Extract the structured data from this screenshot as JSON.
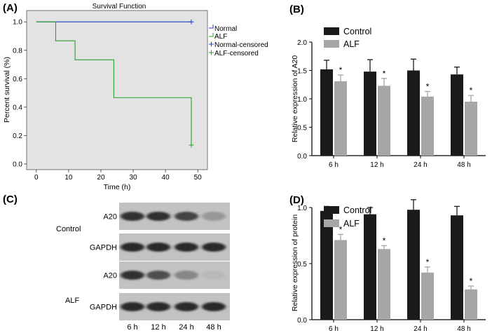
{
  "panels": {
    "a": "(A)",
    "b": "(B)",
    "c": "(C)",
    "d": "(D)"
  },
  "colors": {
    "normal": "#1f3fbf",
    "alf": "#2aa02a",
    "control": "#1a1a1a",
    "alf_bar": "#a6a6a6",
    "plot_bg": "#e3e3e3"
  },
  "chart_data": [
    {
      "id": "A",
      "type": "line",
      "title": "Survival Function",
      "xlabel": "Time (h)",
      "ylabel": "Percent survival (%)",
      "xlim": [
        -3,
        53
      ],
      "ylim": [
        -0.04,
        1.08
      ],
      "xticks": [
        0,
        10,
        20,
        30,
        40,
        50
      ],
      "yticks": [
        "0.0",
        "0.2",
        "0.4",
        "0.6",
        "0.8",
        "1.0"
      ],
      "step": true,
      "legend_position": "right",
      "legend": [
        "Normal",
        "ALF",
        "Normal-censored",
        "ALF-censored"
      ],
      "series": [
        {
          "name": "Normal",
          "color": "#1f3fbf",
          "x": [
            0,
            48
          ],
          "y": [
            1.0,
            1.0
          ],
          "censored": [
            [
              48,
              1.0
            ]
          ]
        },
        {
          "name": "ALF",
          "color": "#2aa02a",
          "x": [
            0,
            6,
            12,
            24,
            48
          ],
          "y": [
            1.0,
            0.867,
            0.733,
            0.467,
            0.133
          ],
          "censored": [
            [
              48,
              0.133
            ]
          ]
        }
      ]
    },
    {
      "id": "B",
      "type": "bar",
      "ylabel": "Relative expression of A20",
      "categories": [
        "6 h",
        "12 h",
        "24 h",
        "48 h"
      ],
      "ylim": [
        0,
        2.0
      ],
      "yticks": [
        "0.0",
        "0.5",
        "1.0",
        "1.5",
        "2.0"
      ],
      "legend_position": "top-left",
      "series": [
        {
          "name": "Control",
          "color": "#1a1a1a",
          "values": [
            1.52,
            1.48,
            1.5,
            1.43
          ],
          "errors": [
            0.16,
            0.21,
            0.2,
            0.13
          ],
          "stars": [
            "",
            "",
            "",
            ""
          ]
        },
        {
          "name": "ALF",
          "color": "#a6a6a6",
          "values": [
            1.31,
            1.23,
            1.04,
            0.95
          ],
          "errors": [
            0.11,
            0.13,
            0.09,
            0.11
          ],
          "stars": [
            "*",
            "*",
            "*",
            "*"
          ]
        }
      ]
    },
    {
      "id": "D",
      "type": "bar",
      "ylabel": "Relative expression of protein",
      "categories": [
        "6 h",
        "12 h",
        "24 h",
        "48 h"
      ],
      "ylim": [
        0,
        1.0
      ],
      "yticks": [
        "0.0",
        "0.5",
        "1.0"
      ],
      "legend_position": "top-left",
      "series": [
        {
          "name": "Control",
          "color": "#1a1a1a",
          "values": [
            0.97,
            0.94,
            0.98,
            0.93
          ],
          "errors": [
            0.04,
            0.06,
            0.09,
            0.08
          ],
          "stars": [
            "",
            "",
            "",
            ""
          ]
        },
        {
          "name": "ALF",
          "color": "#a6a6a6",
          "values": [
            0.71,
            0.63,
            0.42,
            0.27
          ],
          "errors": [
            0.05,
            0.03,
            0.05,
            0.03
          ],
          "stars": [
            "*",
            "*",
            "*",
            "*"
          ]
        }
      ]
    }
  ],
  "blot": {
    "groups": [
      "Control",
      "ALF"
    ],
    "rows": [
      {
        "label": "A20",
        "group": 0,
        "intensity": [
          0.9,
          0.9,
          0.84,
          0.45
        ]
      },
      {
        "label": "GAPDH",
        "group": 0,
        "intensity": [
          0.92,
          0.92,
          0.92,
          0.92
        ]
      },
      {
        "label": "A20",
        "group": 1,
        "intensity": [
          0.9,
          0.8,
          0.55,
          0.22
        ]
      },
      {
        "label": "GAPDH",
        "group": 1,
        "intensity": [
          0.92,
          0.92,
          0.92,
          0.92
        ]
      }
    ],
    "lanes": [
      "6 h",
      "12 h",
      "24 h",
      "48 h"
    ]
  }
}
